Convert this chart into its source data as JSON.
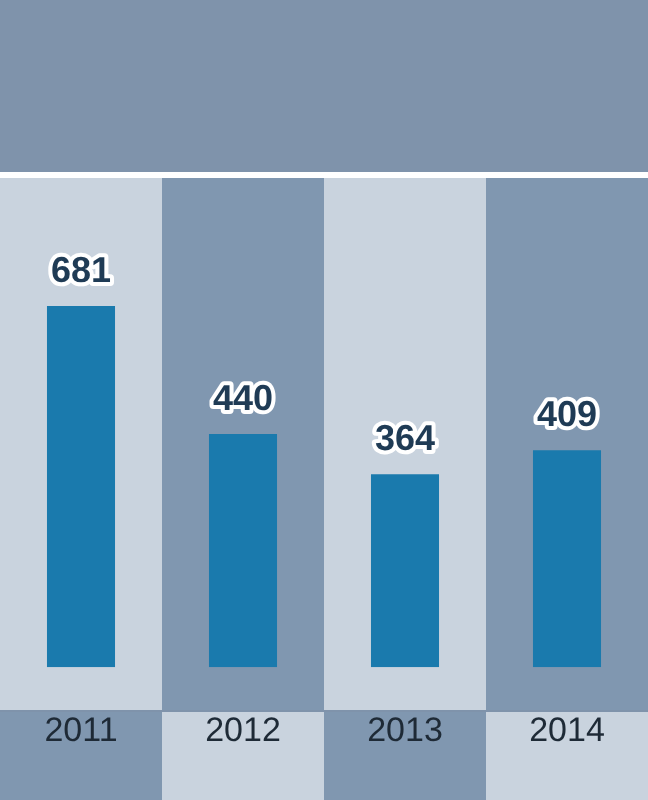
{
  "chart_data": {
    "type": "bar",
    "categories": [
      "2011",
      "2012",
      "2013",
      "2014"
    ],
    "values": [
      681,
      440,
      364,
      409
    ],
    "color": "#1a7aad",
    "data_labels": true,
    "tick_labels": "x",
    "grid": false,
    "legend": false
  }
}
